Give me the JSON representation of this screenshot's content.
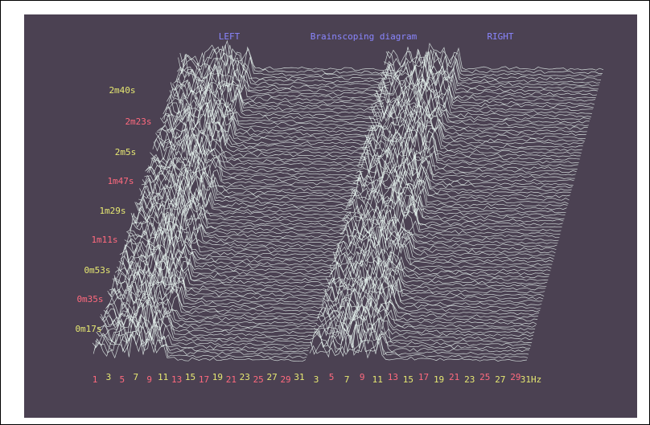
{
  "titles": {
    "left": "LEFT",
    "center": "Brainscoping diagram",
    "right": "RIGHT",
    "color": "#8a86ff"
  },
  "time_labels": [
    {
      "text": "2m40s",
      "color": "#e6e872"
    },
    {
      "text": "2m23s",
      "color": "#ff6a7e"
    },
    {
      "text": "2m5s",
      "color": "#e6e872"
    },
    {
      "text": "1m47s",
      "color": "#ff6a7e"
    },
    {
      "text": "1m29s",
      "color": "#e6e872"
    },
    {
      "text": "1m11s",
      "color": "#ff6a7e"
    },
    {
      "text": "0m53s",
      "color": "#e6e872"
    },
    {
      "text": "0m35s",
      "color": "#ff6a7e"
    },
    {
      "text": "0m17s",
      "color": "#e6e872"
    }
  ],
  "frequency_labels": {
    "left": [
      {
        "text": "1",
        "color": "#ff6a7e"
      },
      {
        "text": "3",
        "color": "#e6e872"
      },
      {
        "text": "5",
        "color": "#ff6a7e"
      },
      {
        "text": "7",
        "color": "#e6e872"
      },
      {
        "text": "9",
        "color": "#ff6a7e"
      },
      {
        "text": "11",
        "color": "#e6e872"
      },
      {
        "text": "13",
        "color": "#ff6a7e"
      },
      {
        "text": "15",
        "color": "#e6e872"
      },
      {
        "text": "17",
        "color": "#ff6a7e"
      },
      {
        "text": "19",
        "color": "#e6e872"
      },
      {
        "text": "21",
        "color": "#ff6a7e"
      },
      {
        "text": "23",
        "color": "#e6e872"
      },
      {
        "text": "25",
        "color": "#ff6a7e"
      },
      {
        "text": "27",
        "color": "#e6e872"
      },
      {
        "text": "29",
        "color": "#ff6a7e"
      },
      {
        "text": "31",
        "color": "#e6e872"
      }
    ],
    "right": [
      {
        "text": "3",
        "color": "#e6e872"
      },
      {
        "text": "5",
        "color": "#ff6a7e"
      },
      {
        "text": "7",
        "color": "#e6e872"
      },
      {
        "text": "9",
        "color": "#ff6a7e"
      },
      {
        "text": "11",
        "color": "#e6e872"
      },
      {
        "text": "13",
        "color": "#ff6a7e"
      },
      {
        "text": "15",
        "color": "#e6e872"
      },
      {
        "text": "17",
        "color": "#ff6a7e"
      },
      {
        "text": "19",
        "color": "#e6e872"
      },
      {
        "text": "21",
        "color": "#ff6a7e"
      },
      {
        "text": "23",
        "color": "#e6e872"
      },
      {
        "text": "25",
        "color": "#ff6a7e"
      },
      {
        "text": "27",
        "color": "#e6e872"
      },
      {
        "text": "29",
        "color": "#ff6a7e"
      },
      {
        "text": "31Hz",
        "color": "#e6e872"
      }
    ]
  }
}
